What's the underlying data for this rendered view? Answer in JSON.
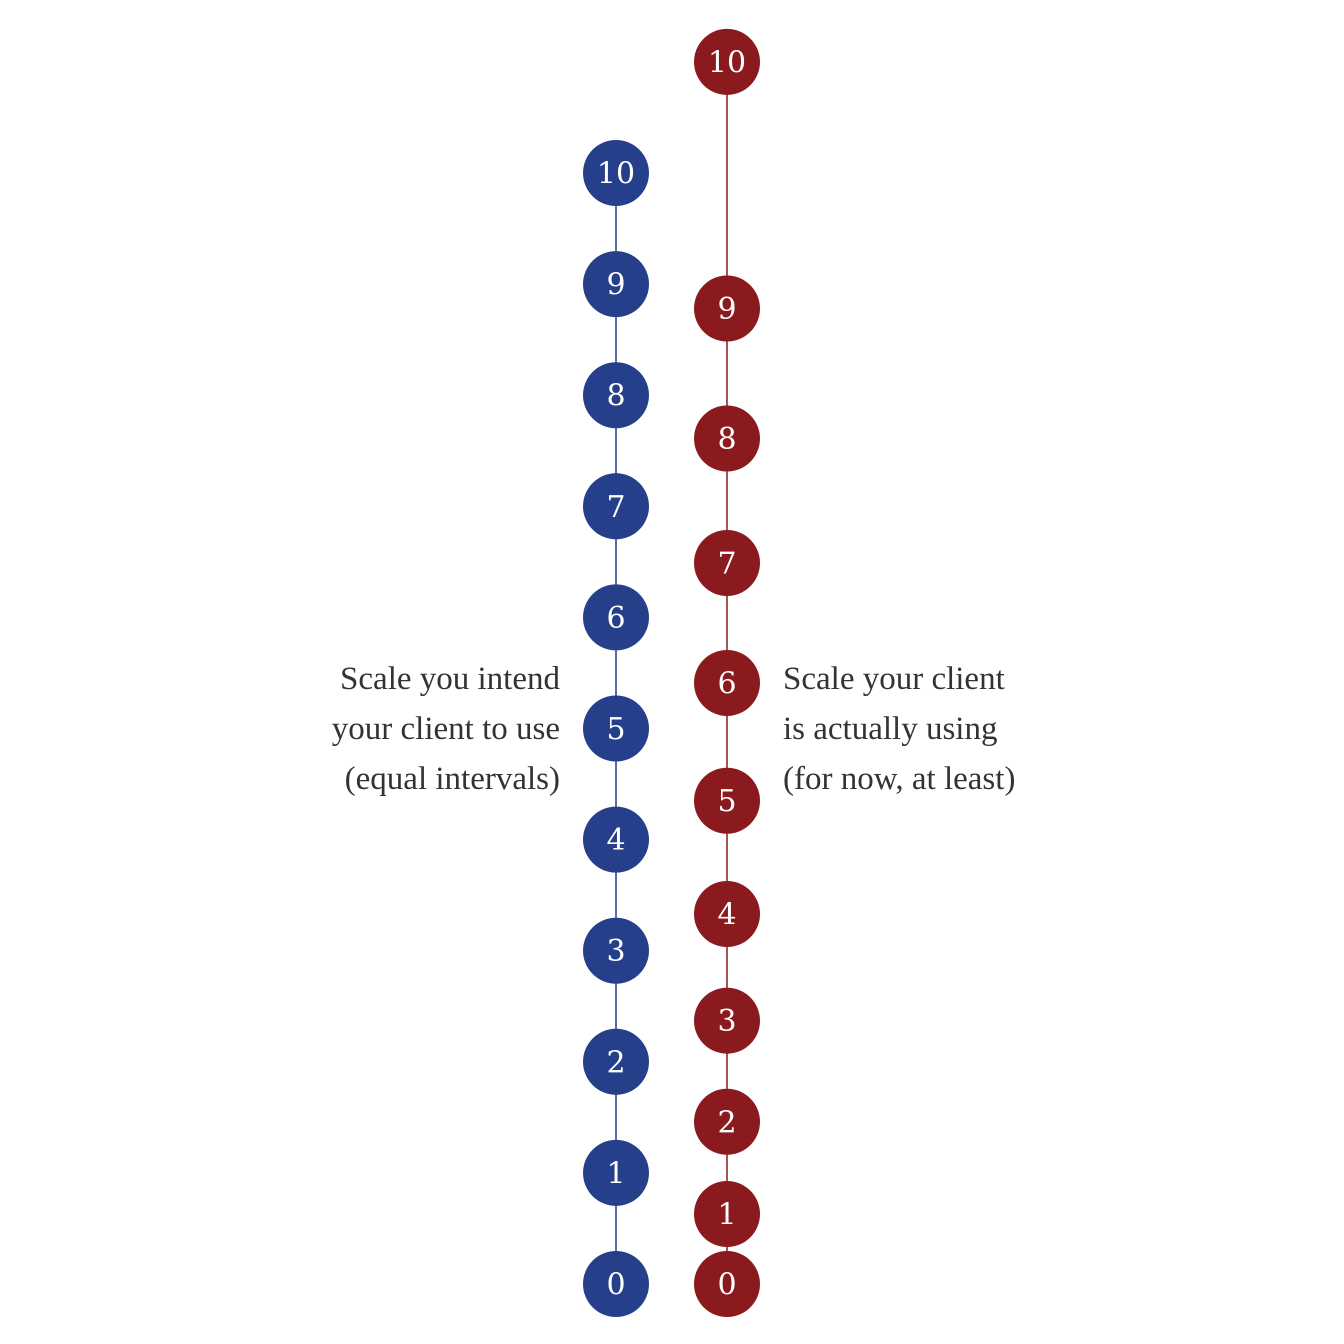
{
  "colors": {
    "intended": "#253f8a",
    "actual": "#8b1a1e",
    "text": "#333333"
  },
  "intended_scale": {
    "caption": [
      "Scale you intend",
      "your client to use",
      "(equal intervals)"
    ],
    "points": [
      {
        "label": "0",
        "value": 0
      },
      {
        "label": "1",
        "value": 1
      },
      {
        "label": "2",
        "value": 2
      },
      {
        "label": "3",
        "value": 3
      },
      {
        "label": "4",
        "value": 4
      },
      {
        "label": "5",
        "value": 5
      },
      {
        "label": "6",
        "value": 6
      },
      {
        "label": "7",
        "value": 7
      },
      {
        "label": "8",
        "value": 8
      },
      {
        "label": "9",
        "value": 9
      },
      {
        "label": "10",
        "value": 10
      }
    ]
  },
  "actual_scale": {
    "caption": [
      "Scale your client",
      "is actually using",
      "(for now, at least)"
    ],
    "points": [
      {
        "label": "0",
        "value": 0
      },
      {
        "label": "1",
        "value": 0.63
      },
      {
        "label": "2",
        "value": 1.46
      },
      {
        "label": "3",
        "value": 2.37
      },
      {
        "label": "4",
        "value": 3.33
      },
      {
        "label": "5",
        "value": 4.35
      },
      {
        "label": "6",
        "value": 5.41
      },
      {
        "label": "7",
        "value": 6.49
      },
      {
        "label": "8",
        "value": 7.61
      },
      {
        "label": "9",
        "value": 8.78
      },
      {
        "label": "10",
        "value": 11.0
      }
    ]
  }
}
